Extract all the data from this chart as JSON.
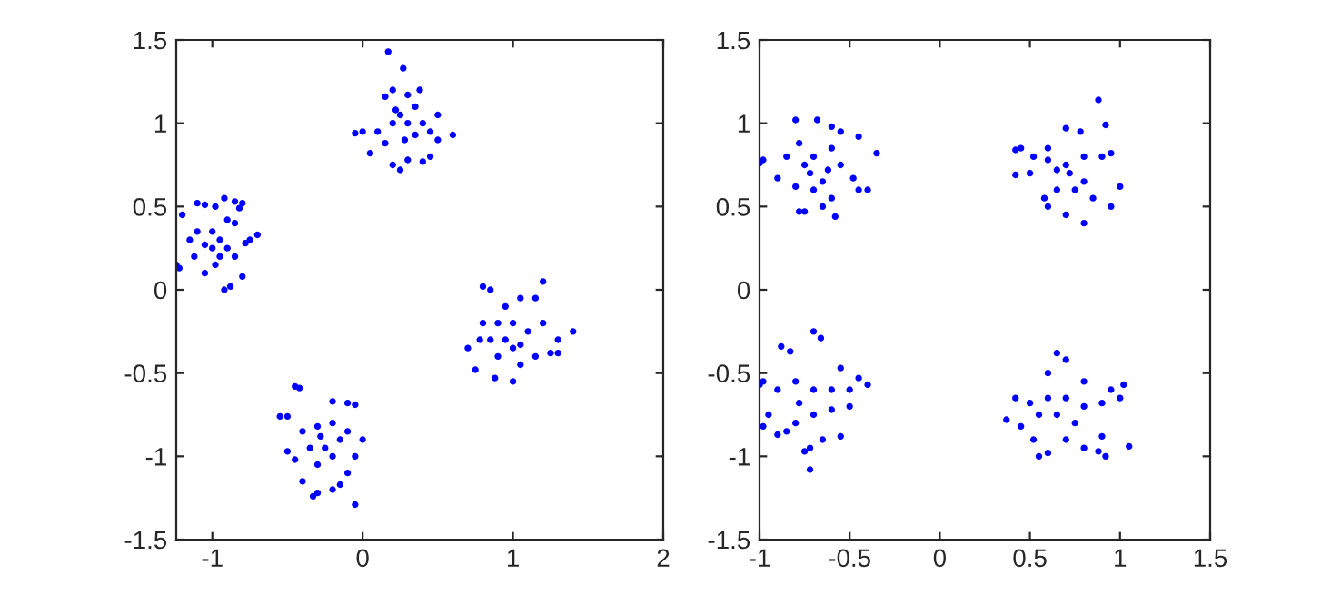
{
  "chart_data": [
    {
      "type": "scatter",
      "marker": "circle",
      "xlim": [
        -1.24,
        2
      ],
      "ylim": [
        -1.5,
        1.5
      ],
      "xticks": [
        -1,
        0,
        1,
        2
      ],
      "yticks": [
        -1.5,
        -1,
        -0.5,
        0,
        0.5,
        1,
        1.5
      ],
      "grid": false,
      "series": [
        {
          "color": "#0000ff",
          "x": [
            -1.24,
            -1.22,
            -1.2,
            -1.1,
            -1.05,
            -0.98,
            -0.92,
            -0.85,
            -0.8,
            -0.82,
            -0.75,
            -0.7,
            -0.78,
            -0.85,
            -0.9,
            -0.95,
            -1.0,
            -1.05,
            -1.1,
            -1.15,
            -1.12,
            -1.05,
            -0.98,
            -0.92,
            -0.88,
            -0.8,
            -0.85,
            -0.95,
            -1.0,
            -0.9,
            0.17,
            0.27,
            0.15,
            0.2,
            0.3,
            0.38,
            0.35,
            0.25,
            0.2,
            0.3,
            0.4,
            0.5,
            0.6,
            0.5,
            0.45,
            0.4,
            0.3,
            0.25,
            0.2,
            0.05,
            0.0,
            -0.05,
            0.1,
            0.15,
            0.35,
            0.28,
            0.22,
            0.45,
            0.8,
            0.85,
            1.2,
            1.15,
            1.05,
            0.95,
            0.9,
            1.0,
            1.1,
            1.2,
            1.3,
            1.4,
            1.3,
            1.25,
            1.15,
            1.05,
            1.0,
            0.88,
            0.75,
            0.7,
            0.78,
            0.85,
            0.95,
            1.05,
            0.9,
            0.8,
            1.0,
            -0.45,
            -0.42,
            -0.2,
            -0.1,
            -0.05,
            -0.55,
            -0.5,
            -0.4,
            -0.3,
            -0.2,
            -0.1,
            0.0,
            -0.05,
            -0.1,
            -0.15,
            -0.2,
            -0.3,
            -0.33,
            -0.4,
            -0.45,
            -0.5,
            -0.35,
            -0.25,
            -0.2,
            -0.3,
            -0.05,
            -0.15,
            -0.28
          ],
          "values": [
            0.15,
            0.13,
            0.45,
            0.52,
            0.51,
            0.5,
            0.55,
            0.53,
            0.52,
            0.49,
            0.3,
            0.33,
            0.28,
            0.4,
            0.42,
            0.3,
            0.25,
            0.27,
            0.35,
            0.3,
            0.2,
            0.1,
            0.15,
            0.0,
            0.02,
            0.08,
            0.2,
            0.2,
            0.35,
            0.25,
            1.43,
            1.33,
            1.16,
            1.2,
            1.17,
            1.2,
            1.1,
            1.05,
            1.0,
            1.0,
            1.0,
            1.05,
            0.93,
            0.9,
            0.8,
            0.77,
            0.78,
            0.72,
            0.75,
            0.82,
            0.95,
            0.94,
            0.95,
            0.88,
            0.93,
            0.9,
            1.08,
            0.95,
            0.02,
            0.0,
            0.05,
            -0.05,
            -0.05,
            -0.1,
            -0.2,
            -0.2,
            -0.25,
            -0.2,
            -0.3,
            -0.25,
            -0.38,
            -0.38,
            -0.4,
            -0.45,
            -0.55,
            -0.53,
            -0.48,
            -0.35,
            -0.3,
            -0.3,
            -0.3,
            -0.33,
            -0.4,
            -0.2,
            -0.35,
            -0.58,
            -0.59,
            -0.67,
            -0.68,
            -0.69,
            -0.76,
            -0.76,
            -0.85,
            -0.82,
            -0.8,
            -0.85,
            -0.9,
            -1.0,
            -1.1,
            -1.17,
            -1.2,
            -1.22,
            -1.24,
            -1.15,
            -1.02,
            -0.97,
            -0.95,
            -0.95,
            -1.0,
            -1.05,
            -1.29,
            -0.9,
            -0.88
          ]
        }
      ]
    },
    {
      "type": "scatter",
      "marker": "circle",
      "xlim": [
        -1,
        1.5
      ],
      "ylim": [
        -1.5,
        1.5
      ],
      "xticks": [
        -1,
        -0.5,
        0,
        0.5,
        1,
        1.5
      ],
      "yticks": [
        -1.5,
        -1,
        -0.5,
        0,
        0.5,
        1,
        1.5
      ],
      "grid": false,
      "series": [
        {
          "color": "#0000ff",
          "x": [
            -1.0,
            -0.98,
            -0.8,
            -0.68,
            -0.6,
            -0.55,
            -0.45,
            -0.35,
            -0.4,
            -0.45,
            -0.48,
            -0.55,
            -0.6,
            -0.7,
            -0.78,
            -0.85,
            -0.9,
            -0.8,
            -0.72,
            -0.65,
            -0.6,
            -0.58,
            -0.65,
            -0.75,
            -0.78,
            -0.7,
            -0.62,
            -0.75,
            0.88,
            0.92,
            0.7,
            0.78,
            0.6,
            0.45,
            0.42,
            0.52,
            0.6,
            0.7,
            0.8,
            0.9,
            0.95,
            1.0,
            0.95,
            0.85,
            0.8,
            0.75,
            0.65,
            0.6,
            0.7,
            0.8,
            0.58,
            0.5,
            0.42,
            0.72,
            0.65,
            -0.7,
            -0.66,
            -0.88,
            -0.83,
            -0.55,
            -0.45,
            -0.4,
            -0.5,
            -0.6,
            -0.7,
            -0.8,
            -0.9,
            -1.0,
            -0.98,
            -0.95,
            -0.98,
            -0.9,
            -0.85,
            -0.8,
            -0.7,
            -0.6,
            -0.5,
            -0.55,
            -0.65,
            -0.72,
            -0.75,
            -0.72,
            -0.78,
            0.65,
            0.7,
            0.6,
            0.8,
            0.95,
            1.02,
            1.0,
            0.9,
            0.8,
            0.7,
            0.6,
            0.5,
            0.42,
            0.37,
            0.45,
            0.52,
            0.55,
            0.6,
            0.7,
            0.8,
            0.88,
            0.92,
            1.05,
            0.9,
            0.75,
            0.65,
            0.55
          ],
          "values": [
            0.76,
            0.78,
            1.02,
            1.02,
            0.98,
            0.95,
            0.92,
            0.82,
            0.6,
            0.6,
            0.67,
            0.75,
            0.85,
            0.8,
            0.88,
            0.8,
            0.67,
            0.62,
            0.7,
            0.65,
            0.55,
            0.44,
            0.5,
            0.47,
            0.47,
            0.6,
            0.72,
            0.75,
            1.14,
            0.99,
            0.97,
            0.95,
            0.85,
            0.85,
            0.84,
            0.8,
            0.78,
            0.75,
            0.8,
            0.8,
            0.82,
            0.62,
            0.5,
            0.55,
            0.65,
            0.6,
            0.6,
            0.5,
            0.45,
            0.4,
            0.55,
            0.7,
            0.69,
            0.7,
            0.72,
            -0.25,
            -0.29,
            -0.34,
            -0.37,
            -0.47,
            -0.53,
            -0.57,
            -0.6,
            -0.6,
            -0.6,
            -0.55,
            -0.6,
            -0.57,
            -0.55,
            -0.75,
            -0.82,
            -0.87,
            -0.85,
            -0.8,
            -0.75,
            -0.72,
            -0.7,
            -0.88,
            -0.9,
            -0.95,
            -0.97,
            -1.08,
            -0.68,
            -0.38,
            -0.42,
            -0.5,
            -0.55,
            -0.6,
            -0.57,
            -0.65,
            -0.68,
            -0.7,
            -0.65,
            -0.65,
            -0.68,
            -0.65,
            -0.78,
            -0.82,
            -0.9,
            -1.0,
            -0.98,
            -0.9,
            -0.95,
            -0.97,
            -1.0,
            -0.94,
            -0.88,
            -0.8,
            -0.75,
            -0.75
          ]
        }
      ]
    }
  ]
}
